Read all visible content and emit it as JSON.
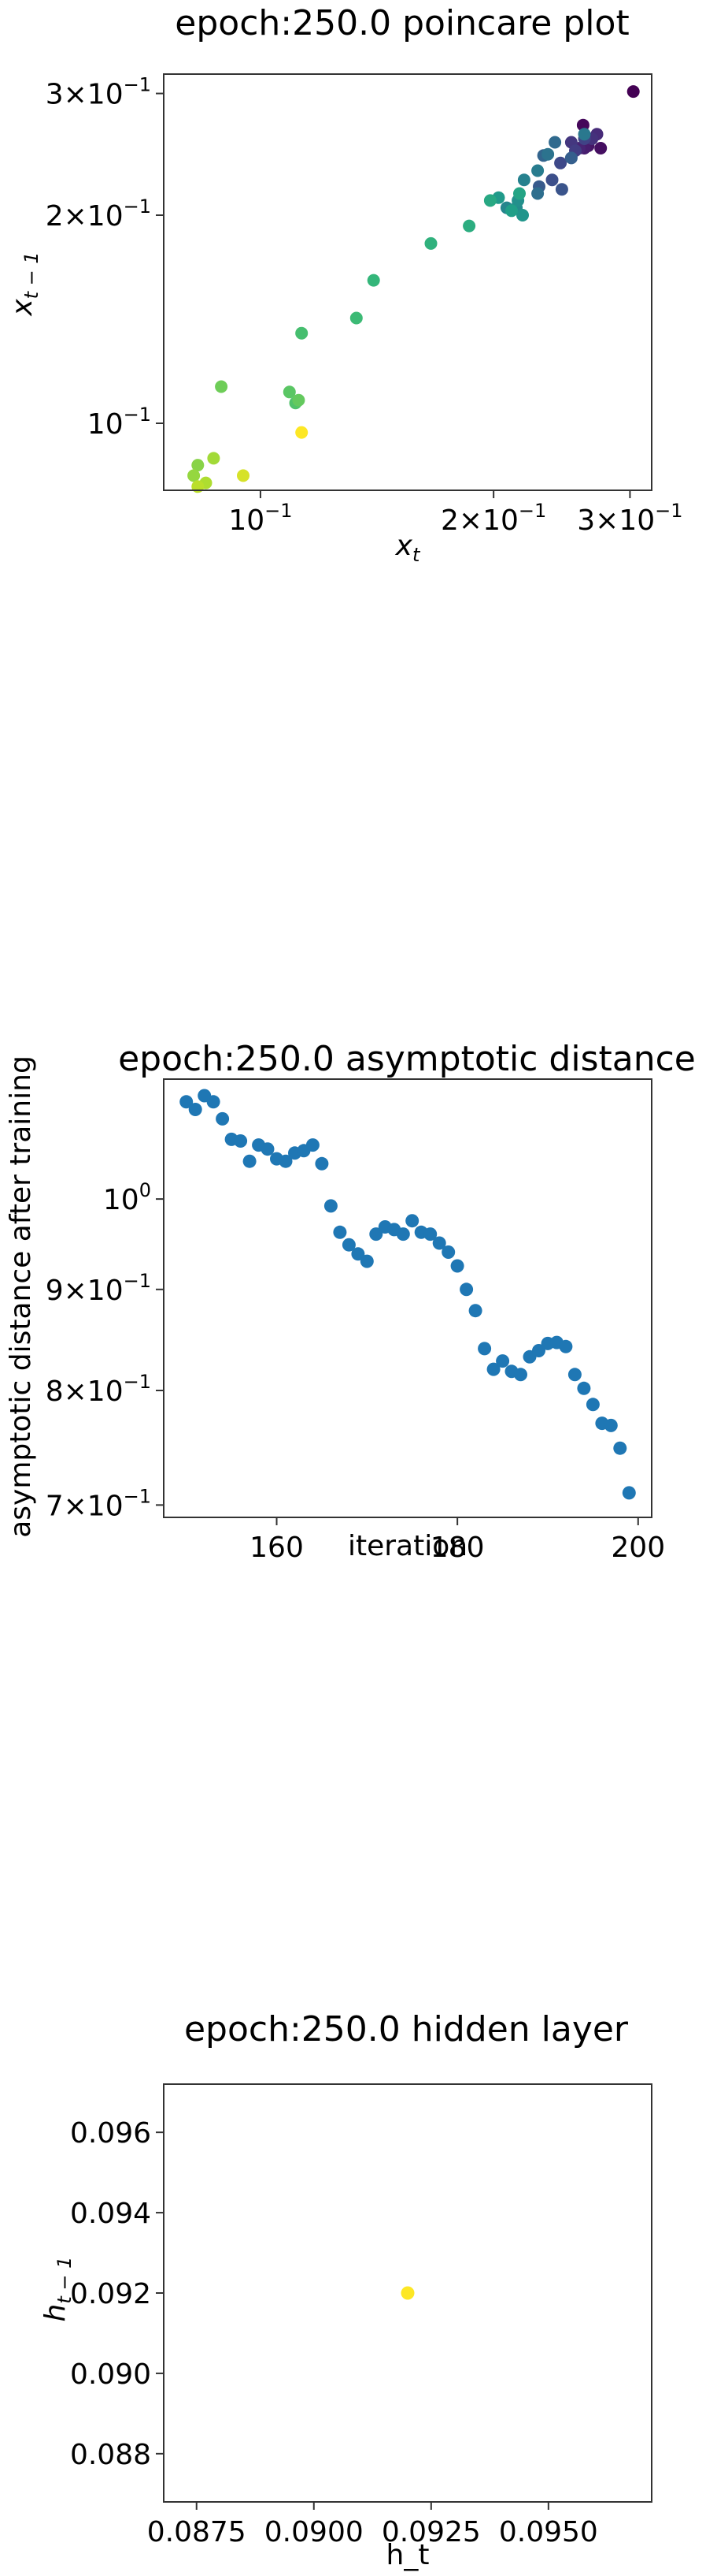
{
  "chart_data": [
    {
      "type": "scatter",
      "title": "epoch:250.0 poincare plot",
      "xlabel": "x_t",
      "ylabel": "x_{t-1}",
      "xscale": "log",
      "yscale": "log",
      "xlim": [
        0.075,
        0.32
      ],
      "ylim": [
        0.08,
        0.32
      ],
      "xticks": [
        {
          "value": 0.1,
          "label": "10^-1"
        },
        {
          "value": 0.2,
          "label": "2×10^-1"
        },
        {
          "value": 0.3,
          "label": "3×10^-1"
        }
      ],
      "yticks": [
        {
          "value": 0.1,
          "label": "10^-1"
        },
        {
          "value": 0.2,
          "label": "2×10^-1"
        },
        {
          "value": 0.3,
          "label": "3×10^-1"
        }
      ],
      "colormap": "viridis",
      "points": [
        [
          0.303,
          0.302,
          0.0
        ],
        [
          0.261,
          0.27,
          0.02
        ],
        [
          0.275,
          0.25,
          0.04
        ],
        [
          0.265,
          0.252,
          0.06
        ],
        [
          0.262,
          0.25,
          0.08
        ],
        [
          0.258,
          0.25,
          0.1
        ],
        [
          0.272,
          0.262,
          0.12
        ],
        [
          0.268,
          0.258,
          0.14
        ],
        [
          0.252,
          0.255,
          0.16
        ],
        [
          0.255,
          0.248,
          0.18
        ],
        [
          0.262,
          0.258,
          0.2
        ],
        [
          0.244,
          0.238,
          0.22
        ],
        [
          0.238,
          0.225,
          0.24
        ],
        [
          0.245,
          0.218,
          0.26
        ],
        [
          0.229,
          0.22,
          0.28
        ],
        [
          0.252,
          0.242,
          0.3
        ],
        [
          0.232,
          0.244,
          0.32
        ],
        [
          0.24,
          0.255,
          0.34
        ],
        [
          0.228,
          0.215,
          0.36
        ],
        [
          0.235,
          0.245,
          0.38
        ],
        [
          0.262,
          0.262,
          0.4
        ],
        [
          0.228,
          0.232,
          0.42
        ],
        [
          0.219,
          0.225,
          0.44
        ],
        [
          0.208,
          0.205,
          0.46
        ],
        [
          0.214,
          0.205,
          0.48
        ],
        [
          0.215,
          0.21,
          0.5
        ],
        [
          0.218,
          0.2,
          0.52
        ],
        [
          0.203,
          0.212,
          0.54
        ],
        [
          0.211,
          0.203,
          0.56
        ],
        [
          0.216,
          0.215,
          0.58
        ],
        [
          0.198,
          0.21,
          0.6
        ],
        [
          0.186,
          0.193,
          0.62
        ],
        [
          0.166,
          0.182,
          0.64
        ],
        [
          0.14,
          0.161,
          0.66
        ],
        [
          0.133,
          0.142,
          0.68
        ],
        [
          0.113,
          0.135,
          0.7
        ],
        [
          0.111,
          0.107,
          0.72
        ],
        [
          0.109,
          0.111,
          0.74
        ],
        [
          0.112,
          0.108,
          0.76
        ],
        [
          0.089,
          0.113,
          0.78
        ],
        [
          0.083,
          0.087,
          0.82
        ],
        [
          0.082,
          0.084,
          0.84
        ],
        [
          0.087,
          0.089,
          0.86
        ],
        [
          0.085,
          0.082,
          0.88
        ],
        [
          0.083,
          0.081,
          0.9
        ],
        [
          0.095,
          0.084,
          0.94
        ],
        [
          0.113,
          0.097,
          1.0
        ]
      ]
    },
    {
      "type": "scatter",
      "title": "epoch:250.0 asymptotic distance",
      "xlabel": "iteration",
      "ylabel": "asymptotic distance after training",
      "yscale": "log",
      "xlim": [
        147.5,
        201.5
      ],
      "ylim": [
        0.69,
        1.15
      ],
      "xticks": [
        {
          "value": 160,
          "label": "160"
        },
        {
          "value": 180,
          "label": "180"
        },
        {
          "value": 200,
          "label": "200"
        }
      ],
      "yticks": [
        {
          "value": 0.7,
          "label": "7×10^-1"
        },
        {
          "value": 0.8,
          "label": "8×10^-1"
        },
        {
          "value": 0.9,
          "label": "9×10^-1"
        },
        {
          "value": 1.0,
          "label": "10^0"
        }
      ],
      "color": "#1f77b4",
      "x": [
        150,
        151,
        152,
        153,
        154,
        155,
        156,
        157,
        158,
        159,
        160,
        161,
        162,
        163,
        164,
        165,
        166,
        167,
        168,
        169,
        170,
        171,
        172,
        173,
        174,
        175,
        176,
        177,
        178,
        179,
        180,
        181,
        182,
        183,
        184,
        185,
        186,
        187,
        188,
        189,
        190,
        191,
        192,
        193,
        194,
        195,
        196,
        197,
        198,
        199
      ],
      "y": [
        1.12,
        1.11,
        1.128,
        1.12,
        1.098,
        1.072,
        1.07,
        1.045,
        1.065,
        1.06,
        1.048,
        1.045,
        1.055,
        1.058,
        1.065,
        1.042,
        0.992,
        0.962,
        0.948,
        0.938,
        0.93,
        0.96,
        0.968,
        0.965,
        0.96,
        0.975,
        0.962,
        0.96,
        0.95,
        0.94,
        0.925,
        0.9,
        0.878,
        0.84,
        0.82,
        0.828,
        0.818,
        0.815,
        0.832,
        0.838,
        0.845,
        0.846,
        0.842,
        0.815,
        0.802,
        0.787,
        0.77,
        0.768,
        0.748,
        0.71
      ]
    },
    {
      "type": "scatter",
      "title": "epoch:250.0 hidden layer",
      "xlabel": "h_t",
      "ylabel": "h_{t-1}",
      "xlim": [
        0.0868,
        0.0972
      ],
      "ylim": [
        0.0868,
        0.0972
      ],
      "xticks": [
        {
          "value": 0.0875,
          "label": "0.0875"
        },
        {
          "value": 0.09,
          "label": "0.0900"
        },
        {
          "value": 0.0925,
          "label": "0.0925"
        },
        {
          "value": 0.095,
          "label": "0.0950"
        }
      ],
      "yticks": [
        {
          "value": 0.088,
          "label": "0.088"
        },
        {
          "value": 0.09,
          "label": "0.090"
        },
        {
          "value": 0.092,
          "label": "0.092"
        },
        {
          "value": 0.094,
          "label": "0.094"
        },
        {
          "value": 0.096,
          "label": "0.096"
        }
      ],
      "color": "#fde725",
      "x": [
        0.092
      ],
      "y": [
        0.092
      ]
    }
  ]
}
